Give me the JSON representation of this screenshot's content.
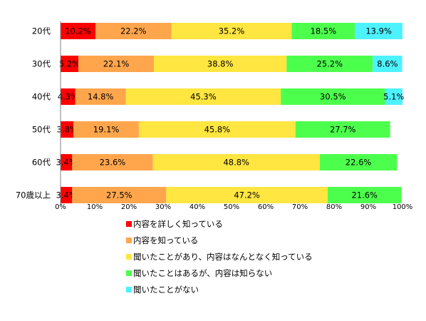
{
  "chart_data": {
    "type": "bar",
    "orientation": "horizontal",
    "stacked": "percent",
    "categories": [
      "20代",
      "30代",
      "40代",
      "50代",
      "60代",
      "70歳以上"
    ],
    "series": [
      {
        "name": "内容を詳しく知っている",
        "color": "#ff0000",
        "values": [
          10.2,
          5.2,
          4.3,
          3.8,
          3.4,
          3.4
        ]
      },
      {
        "name": "内容を知っている",
        "color": "#ffa64d",
        "values": [
          22.2,
          22.1,
          14.8,
          19.1,
          23.6,
          27.5
        ]
      },
      {
        "name": "聞いたことがあり、内容はなんとなく知っている",
        "color": "#ffe640",
        "values": [
          35.2,
          38.8,
          45.3,
          45.8,
          48.8,
          47.2
        ]
      },
      {
        "name": "聞いたことはあるが、内容は知らない",
        "color": "#4dff4d",
        "values": [
          18.5,
          25.2,
          30.5,
          27.7,
          22.6,
          21.6
        ]
      },
      {
        "name": "聞いたことがない",
        "color": "#4df2ff",
        "values": [
          13.9,
          8.6,
          5.1,
          null,
          null,
          null
        ]
      }
    ],
    "x_ticks": [
      "0%",
      "10%",
      "20%",
      "30%",
      "40%",
      "50%",
      "60%",
      "70%",
      "80%",
      "90%",
      "100%"
    ],
    "xlim": [
      0,
      100
    ],
    "grid": false,
    "legend_position": "bottom"
  }
}
